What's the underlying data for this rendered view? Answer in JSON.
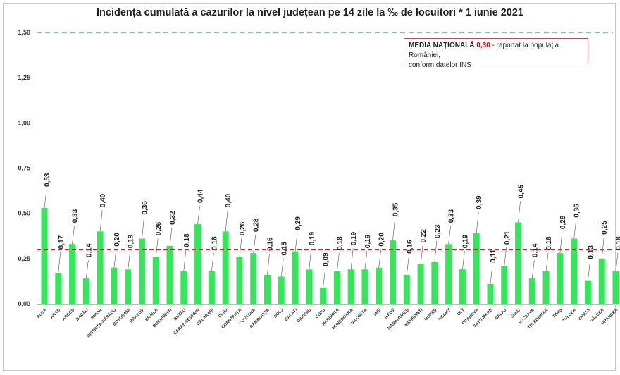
{
  "chart_data": {
    "type": "bar",
    "title": "Incidența cumulată a cazurilor la nivel județean pe 14 zile la ‰ de locuitori *  1 iunie 2021",
    "categories": [
      "ALBA",
      "ARAD",
      "ARGEȘ",
      "BACĂU",
      "BIHOR",
      "BISTRIȚA-NĂSĂUD",
      "BOTOȘANI",
      "BRAȘOV",
      "BRĂILA",
      "BUCUREȘTI",
      "BUZĂU",
      "CARAȘ-SEVERIN",
      "CĂLĂRAȘI",
      "CLUJ",
      "CONSTANȚA",
      "COVASNA",
      "DÂMBOVIȚA",
      "DOLJ",
      "GALAȚI",
      "GIURGIU",
      "GORJ",
      "HARGHITA",
      "HUNEDOARA",
      "IALOMIȚA",
      "IAȘI",
      "ILFOV",
      "MARAMUREȘ",
      "MEHEDINȚI",
      "MUREȘ",
      "NEAMȚ",
      "OLT",
      "PRAHOVA",
      "SATU MARE",
      "SĂLAJ",
      "SIBIU",
      "SUCEAVA",
      "TELEORMAN",
      "TIMIȘ",
      "TULCEA",
      "VASLUI",
      "VÂLCEA",
      "VRANCEA"
    ],
    "values": [
      0.53,
      0.17,
      0.33,
      0.14,
      0.4,
      0.2,
      0.19,
      0.36,
      0.26,
      0.32,
      0.18,
      0.44,
      0.18,
      0.4,
      0.26,
      0.28,
      0.16,
      0.15,
      0.29,
      0.19,
      0.09,
      0.18,
      0.19,
      0.19,
      0.2,
      0.35,
      0.16,
      0.22,
      0.23,
      0.33,
      0.19,
      0.39,
      0.11,
      0.21,
      0.45,
      0.14,
      0.18,
      0.28,
      0.36,
      0.13,
      0.25,
      0.18
    ],
    "value_labels": [
      "0,53",
      "0,17",
      "0,33",
      "0,14",
      "0,40",
      "0,20",
      "0,19",
      "0,36",
      "0,26",
      "0,32",
      "0,18",
      "0,44",
      "0,18",
      "0,40",
      "0,26",
      "0,28",
      "0,16",
      "0,15",
      "0,29",
      "0,19",
      "0,09",
      "0,18",
      "0,19",
      "0,19",
      "0,20",
      "0,35",
      "0,16",
      "0,22",
      "0,23",
      "0,33",
      "0,19",
      "0,39",
      "0,11",
      "0,21",
      "0,45",
      "0,14",
      "0,18",
      "0,28",
      "0,36",
      "0,13",
      "0,25",
      "0,18"
    ],
    "y_ticks": [
      0,
      0.25,
      0.5,
      0.75,
      1.0,
      1.25,
      1.5
    ],
    "y_tick_labels": [
      "0,00",
      "0,25",
      "0,50",
      "0,75",
      "1,00",
      "1,25",
      "1,50"
    ],
    "ylim": [
      0,
      1.5
    ],
    "reference_lines": [
      {
        "value": 0.3,
        "style": "dashed",
        "color": "#d62020"
      },
      {
        "value": 1.5,
        "style": "dashed",
        "color": "#3aa36a"
      }
    ],
    "bar_color": "#33e65a",
    "grid": false
  },
  "legend": {
    "label": "MEDIA NAȚIONALĂ",
    "value": "0,30",
    "text_line1": "- raportat la populația României,",
    "text_line2": "conform datelor INS"
  }
}
